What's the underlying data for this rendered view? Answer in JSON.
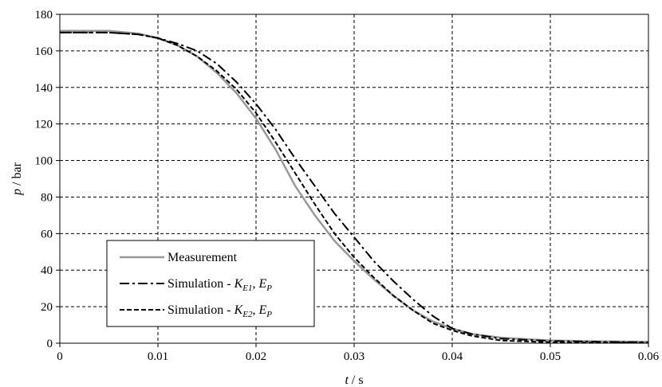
{
  "chart_data": {
    "type": "line",
    "title": "",
    "xlabel": {
      "var": "t",
      "unit": " / s"
    },
    "ylabel": {
      "var": "p",
      "unit": " / bar"
    },
    "xlim": [
      0,
      0.06
    ],
    "ylim": [
      0,
      180
    ],
    "x_ticks": [
      0,
      0.01,
      0.02,
      0.03,
      0.04,
      0.05,
      0.06
    ],
    "x_tick_labels": [
      "0",
      "0.01",
      "0.02",
      "0.03",
      "0.04",
      "0.05",
      "0.06"
    ],
    "y_ticks": [
      0,
      20,
      40,
      60,
      80,
      100,
      120,
      140,
      160,
      180
    ],
    "y_tick_labels": [
      "0",
      "20",
      "40",
      "60",
      "80",
      "100",
      "120",
      "140",
      "160",
      "180"
    ],
    "grid": true,
    "legend_position": "bottom-left",
    "series": [
      {
        "name": "Measurement",
        "label": {
          "prefix": "Measurement",
          "parts": []
        },
        "color": "#999999",
        "style": "solid",
        "x": [
          0,
          0.005,
          0.008,
          0.01,
          0.012,
          0.014,
          0.016,
          0.018,
          0.02,
          0.022,
          0.024,
          0.026,
          0.028,
          0.03,
          0.032,
          0.034,
          0.036,
          0.038,
          0.04,
          0.042,
          0.045,
          0.05,
          0.055,
          0.06
        ],
        "y": [
          171,
          171,
          169.5,
          167,
          163,
          157,
          148,
          137,
          123,
          106,
          86,
          70,
          56,
          45,
          35,
          26,
          18,
          12,
          8,
          5,
          3,
          1.5,
          1,
          0.8
        ]
      },
      {
        "name": "Simulation - KE1, EP",
        "label": {
          "prefix": "Simulation - ",
          "parts": [
            {
              "base": "K",
              "sub": "E1"
            },
            {
              "sep": ", "
            },
            {
              "base": "E",
              "sub": "P"
            }
          ]
        },
        "color": "#000000",
        "style": "dashdot",
        "x": [
          0,
          0.005,
          0.008,
          0.01,
          0.012,
          0.014,
          0.016,
          0.018,
          0.02,
          0.022,
          0.024,
          0.026,
          0.028,
          0.03,
          0.032,
          0.034,
          0.036,
          0.038,
          0.04,
          0.042,
          0.045,
          0.05,
          0.055,
          0.06
        ],
        "y": [
          170,
          170,
          169,
          167,
          164,
          160,
          153,
          143,
          131,
          117,
          101,
          86,
          71,
          58,
          45,
          34,
          24,
          15,
          8,
          5,
          2.5,
          1.2,
          0.8,
          0.5
        ]
      },
      {
        "name": "Simulation - KE2, EP",
        "label": {
          "prefix": "Simulation - ",
          "parts": [
            {
              "base": "K",
              "sub": "E2"
            },
            {
              "sep": ", "
            },
            {
              "base": "E",
              "sub": "P"
            }
          ]
        },
        "color": "#000000",
        "style": "dashed",
        "x": [
          0,
          0.005,
          0.008,
          0.01,
          0.012,
          0.014,
          0.016,
          0.018,
          0.02,
          0.022,
          0.024,
          0.026,
          0.028,
          0.03,
          0.032,
          0.034,
          0.036,
          0.038,
          0.04,
          0.042,
          0.045,
          0.05,
          0.055,
          0.06
        ],
        "y": [
          170,
          170,
          169,
          167,
          163,
          157,
          149,
          139,
          126,
          110,
          93,
          76,
          60,
          47,
          36,
          26,
          18,
          11,
          7,
          4,
          1.5,
          0.5,
          0.3,
          0.3
        ]
      }
    ]
  }
}
